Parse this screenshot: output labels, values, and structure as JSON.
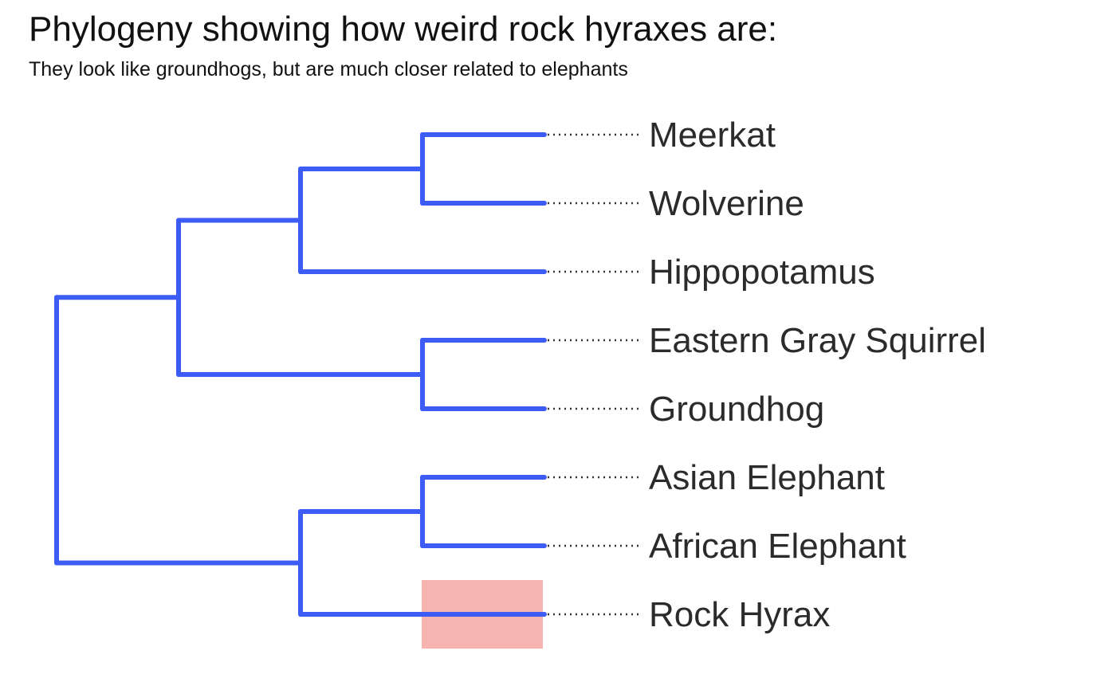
{
  "header": {
    "title": "Phylogeny showing how weird rock hyraxes are:",
    "subtitle": "They look like groundhogs, but are much closer related to elephants"
  },
  "colors": {
    "branch": "#3d5cf5",
    "label": "#2b2b2b",
    "highlight": "#f4a09b"
  },
  "tree": {
    "tips": [
      "Meerkat",
      "Wolverine",
      "Hippopotamus",
      "Eastern Gray Squirrel",
      "Groundhog",
      "Asian Elephant",
      "African Elephant",
      "Rock Hyrax"
    ],
    "clades": [
      {
        "name": "meerkat-wolverine",
        "depth": 3,
        "members": [
          0,
          1
        ]
      },
      {
        "name": "laurasiatheria",
        "depth": 2,
        "members": [
          "meerkat-wolverine",
          2
        ]
      },
      {
        "name": "squirrel-groundhog",
        "depth": 3,
        "members": [
          3,
          4
        ]
      },
      {
        "name": "boreoeutheria",
        "depth": 1,
        "members": [
          "laurasiatheria",
          "squirrel-groundhog"
        ]
      },
      {
        "name": "elephants",
        "depth": 3,
        "members": [
          5,
          6
        ]
      },
      {
        "name": "paenungulata",
        "depth": 2,
        "members": [
          "elephants",
          7
        ]
      },
      {
        "name": "root",
        "depth": 0,
        "members": [
          "boreoeutheria",
          "paenungulata"
        ]
      }
    ],
    "highlighted_tip": "Rock Hyrax"
  }
}
